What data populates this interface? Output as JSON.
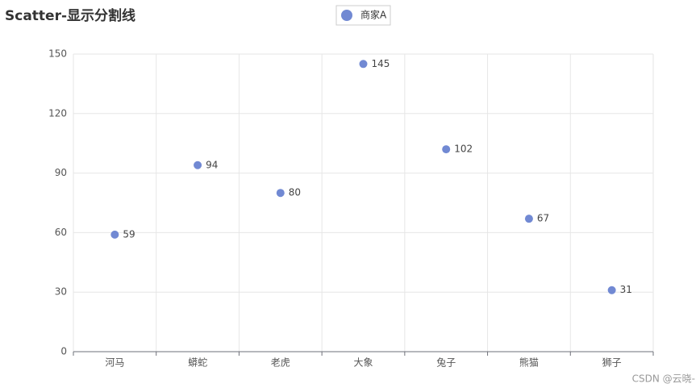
{
  "chart_data": {
    "type": "scatter",
    "title": "Scatter-显示分割线",
    "categories": [
      "河马",
      "蟒蛇",
      "老虎",
      "大象",
      "兔子",
      "熊猫",
      "狮子"
    ],
    "series": [
      {
        "name": "商家A",
        "color": "#7189d3",
        "values": [
          59,
          94,
          80,
          145,
          102,
          67,
          31
        ]
      }
    ],
    "ylim": [
      0,
      150
    ],
    "yticks": [
      0,
      30,
      60,
      90,
      120,
      150
    ],
    "grid": true,
    "x_grid": true,
    "legend": "top",
    "watermark": "CSDN @云晓-"
  }
}
